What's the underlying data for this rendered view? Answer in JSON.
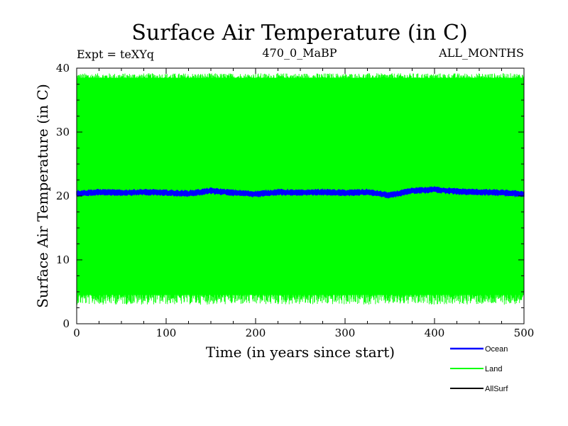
{
  "chart_data": {
    "type": "line",
    "title": "Surface Air Temperature (in C)",
    "subtitle_left": "Expt = teXYq",
    "subtitle_center": "470_0_MaBP",
    "subtitle_right": "ALL_MONTHS",
    "xlabel": "Time (in years since start)",
    "ylabel": "Surface Air Temperature (in C)",
    "xlim": [
      0,
      500
    ],
    "ylim": [
      0,
      40
    ],
    "x_ticks": [
      0,
      100,
      200,
      300,
      400,
      500
    ],
    "y_ticks": [
      0,
      10,
      20,
      30,
      40
    ],
    "grid": false,
    "legend_position": "bottom-right",
    "series": [
      {
        "name": "Ocean",
        "color": "#0000ff",
        "x": [
          0,
          25,
          50,
          75,
          100,
          125,
          150,
          175,
          200,
          225,
          250,
          275,
          300,
          325,
          350,
          375,
          400,
          425,
          450,
          475,
          500
        ],
        "y": [
          20.4,
          20.6,
          20.5,
          20.6,
          20.5,
          20.4,
          20.8,
          20.5,
          20.3,
          20.6,
          20.5,
          20.6,
          20.5,
          20.6,
          20.1,
          20.8,
          21.0,
          20.7,
          20.6,
          20.5,
          20.3
        ],
        "band": 0.7
      },
      {
        "name": "Land",
        "color": "#00ff00",
        "x": [
          0,
          500
        ],
        "y_max": [
          38.5,
          38.5
        ],
        "y_min": [
          4.5,
          4.5
        ],
        "peak_high": 39.2,
        "peak_low": 3.0
      },
      {
        "name": "AllSurf",
        "color": "#000000"
      }
    ]
  }
}
